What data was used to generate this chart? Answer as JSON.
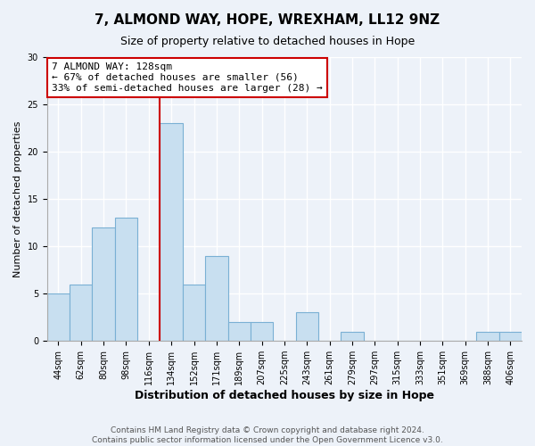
{
  "title": "7, ALMOND WAY, HOPE, WREXHAM, LL12 9NZ",
  "subtitle": "Size of property relative to detached houses in Hope",
  "xlabel": "Distribution of detached houses by size in Hope",
  "ylabel": "Number of detached properties",
  "bar_labels": [
    "44sqm",
    "62sqm",
    "80sqm",
    "98sqm",
    "116sqm",
    "134sqm",
    "152sqm",
    "171sqm",
    "189sqm",
    "207sqm",
    "225sqm",
    "243sqm",
    "261sqm",
    "279sqm",
    "297sqm",
    "315sqm",
    "333sqm",
    "351sqm",
    "369sqm",
    "388sqm",
    "406sqm"
  ],
  "bar_values": [
    5,
    6,
    12,
    13,
    0,
    23,
    6,
    9,
    2,
    2,
    0,
    3,
    0,
    1,
    0,
    0,
    0,
    0,
    0,
    1,
    1
  ],
  "bar_color": "#c8dff0",
  "bar_edge_color": "#7ab0d4",
  "red_line_bar_index": 5,
  "highlight_line_color": "#cc0000",
  "annotation_line1": "7 ALMOND WAY: 128sqm",
  "annotation_line2": "← 67% of detached houses are smaller (56)",
  "annotation_line3": "33% of semi-detached houses are larger (28) →",
  "annotation_box_color": "#ffffff",
  "annotation_box_edge": "#cc0000",
  "ylim": [
    0,
    30
  ],
  "yticks": [
    0,
    5,
    10,
    15,
    20,
    25,
    30
  ],
  "footer_line1": "Contains HM Land Registry data © Crown copyright and database right 2024.",
  "footer_line2": "Contains public sector information licensed under the Open Government Licence v3.0.",
  "bg_color": "#edf2f9",
  "grid_color": "#ffffff",
  "title_fontsize": 11,
  "subtitle_fontsize": 9,
  "ylabel_fontsize": 8,
  "xlabel_fontsize": 9,
  "tick_fontsize": 7,
  "footer_fontsize": 6.5
}
